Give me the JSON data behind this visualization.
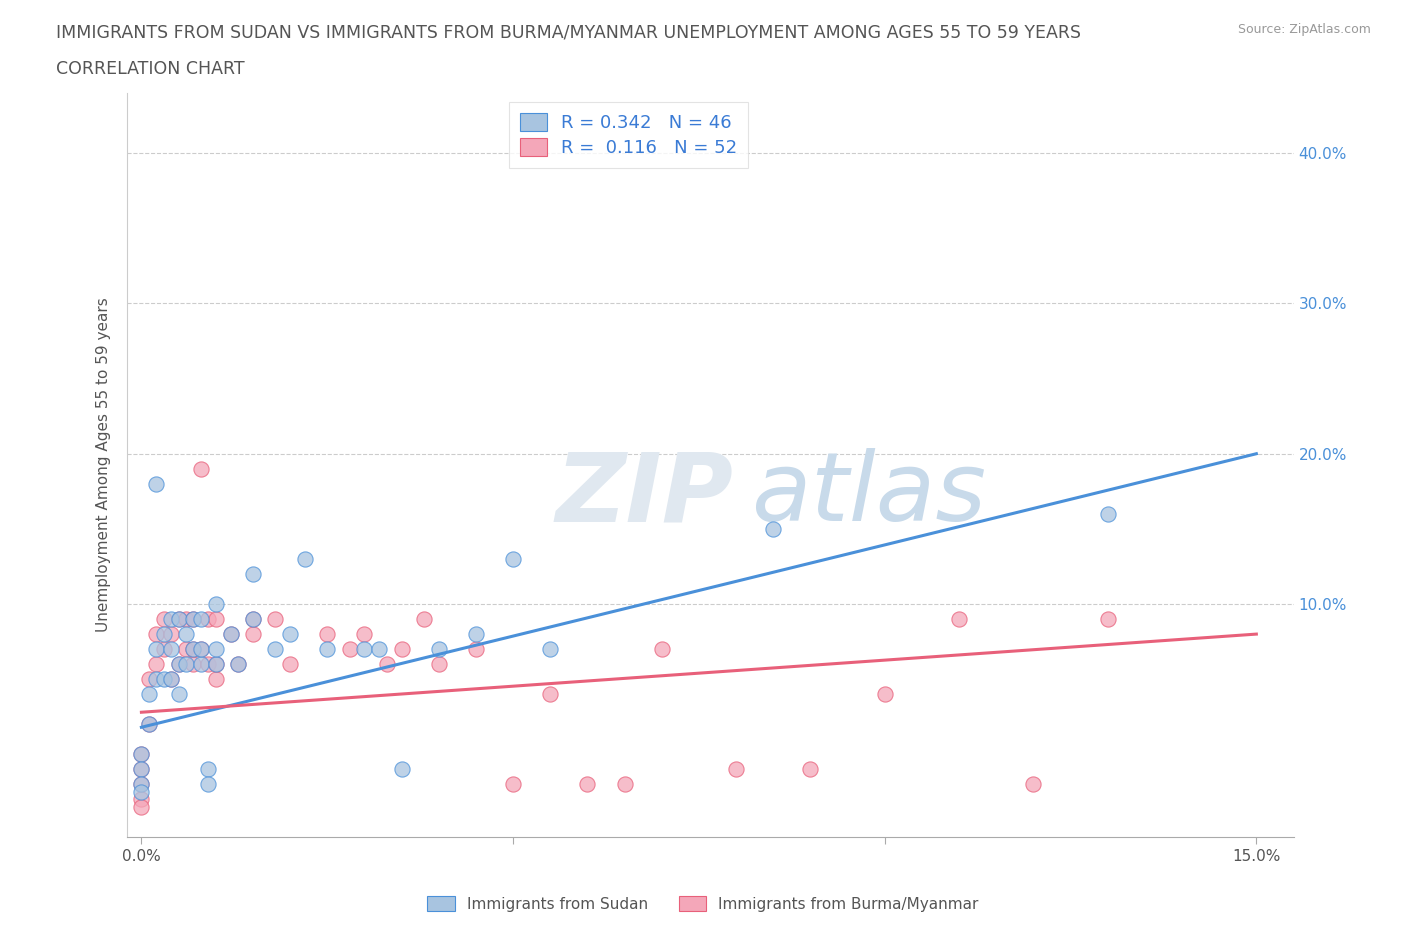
{
  "title_line1": "IMMIGRANTS FROM SUDAN VS IMMIGRANTS FROM BURMA/MYANMAR UNEMPLOYMENT AMONG AGES 55 TO 59 YEARS",
  "title_line2": "CORRELATION CHART",
  "source": "Source: ZipAtlas.com",
  "ylabel": "Unemployment Among Ages 55 to 59 years",
  "sudan_color": "#a8c4e0",
  "burma_color": "#f4a7b9",
  "sudan_line_color": "#4a90d9",
  "burma_line_color": "#e8607a",
  "background_color": "#ffffff",
  "legend_R_sudan": "0.342",
  "legend_N_sudan": "46",
  "legend_R_burma": "0.116",
  "legend_N_burma": "52",
  "sudan_x": [
    0.0,
    0.0,
    0.0,
    0.0,
    0.001,
    0.001,
    0.002,
    0.002,
    0.002,
    0.003,
    0.003,
    0.004,
    0.004,
    0.004,
    0.005,
    0.005,
    0.005,
    0.006,
    0.006,
    0.007,
    0.007,
    0.008,
    0.008,
    0.008,
    0.009,
    0.009,
    0.01,
    0.01,
    0.01,
    0.012,
    0.013,
    0.015,
    0.015,
    0.018,
    0.02,
    0.022,
    0.025,
    0.03,
    0.032,
    0.035,
    0.04,
    0.045,
    0.05,
    0.055,
    0.085,
    0.13
  ],
  "sudan_y": [
    0.0,
    -0.01,
    -0.02,
    -0.025,
    0.02,
    0.04,
    0.05,
    0.07,
    0.18,
    0.05,
    0.08,
    0.05,
    0.07,
    0.09,
    0.04,
    0.06,
    0.09,
    0.06,
    0.08,
    0.07,
    0.09,
    0.06,
    0.07,
    0.09,
    -0.01,
    -0.02,
    0.06,
    0.07,
    0.1,
    0.08,
    0.06,
    0.09,
    0.12,
    0.07,
    0.08,
    0.13,
    0.07,
    0.07,
    0.07,
    -0.01,
    0.07,
    0.08,
    0.13,
    0.07,
    0.15,
    0.16
  ],
  "burma_x": [
    0.0,
    0.0,
    0.0,
    0.0,
    0.0,
    0.001,
    0.001,
    0.002,
    0.002,
    0.003,
    0.003,
    0.004,
    0.004,
    0.005,
    0.005,
    0.006,
    0.006,
    0.007,
    0.007,
    0.007,
    0.008,
    0.008,
    0.009,
    0.009,
    0.01,
    0.01,
    0.01,
    0.012,
    0.013,
    0.015,
    0.015,
    0.018,
    0.02,
    0.025,
    0.028,
    0.03,
    0.033,
    0.035,
    0.038,
    0.04,
    0.045,
    0.05,
    0.055,
    0.06,
    0.065,
    0.07,
    0.08,
    0.09,
    0.1,
    0.11,
    0.12,
    0.13
  ],
  "burma_y": [
    0.0,
    -0.01,
    -0.02,
    -0.03,
    -0.035,
    0.02,
    0.05,
    0.06,
    0.08,
    0.07,
    0.09,
    0.05,
    0.08,
    0.06,
    0.09,
    0.07,
    0.09,
    0.06,
    0.07,
    0.09,
    0.07,
    0.19,
    0.06,
    0.09,
    0.05,
    0.06,
    0.09,
    0.08,
    0.06,
    0.08,
    0.09,
    0.09,
    0.06,
    0.08,
    0.07,
    0.08,
    0.06,
    0.07,
    0.09,
    0.06,
    0.07,
    -0.02,
    0.04,
    -0.02,
    -0.02,
    0.07,
    -0.01,
    -0.01,
    0.04,
    0.09,
    -0.02,
    0.09
  ],
  "xlim": [
    -0.002,
    0.155
  ],
  "ylim": [
    -0.055,
    0.44
  ],
  "xtick_vals": [
    0.0,
    0.05,
    0.1,
    0.15
  ],
  "xtick_labels": [
    "0.0%",
    "",
    "",
    "15.0%"
  ],
  "ytick_vals": [
    0.0,
    0.1,
    0.2,
    0.3,
    0.4
  ],
  "ytick_right_labels": [
    "",
    "10.0%",
    "20.0%",
    "30.0%",
    "40.0%"
  ]
}
